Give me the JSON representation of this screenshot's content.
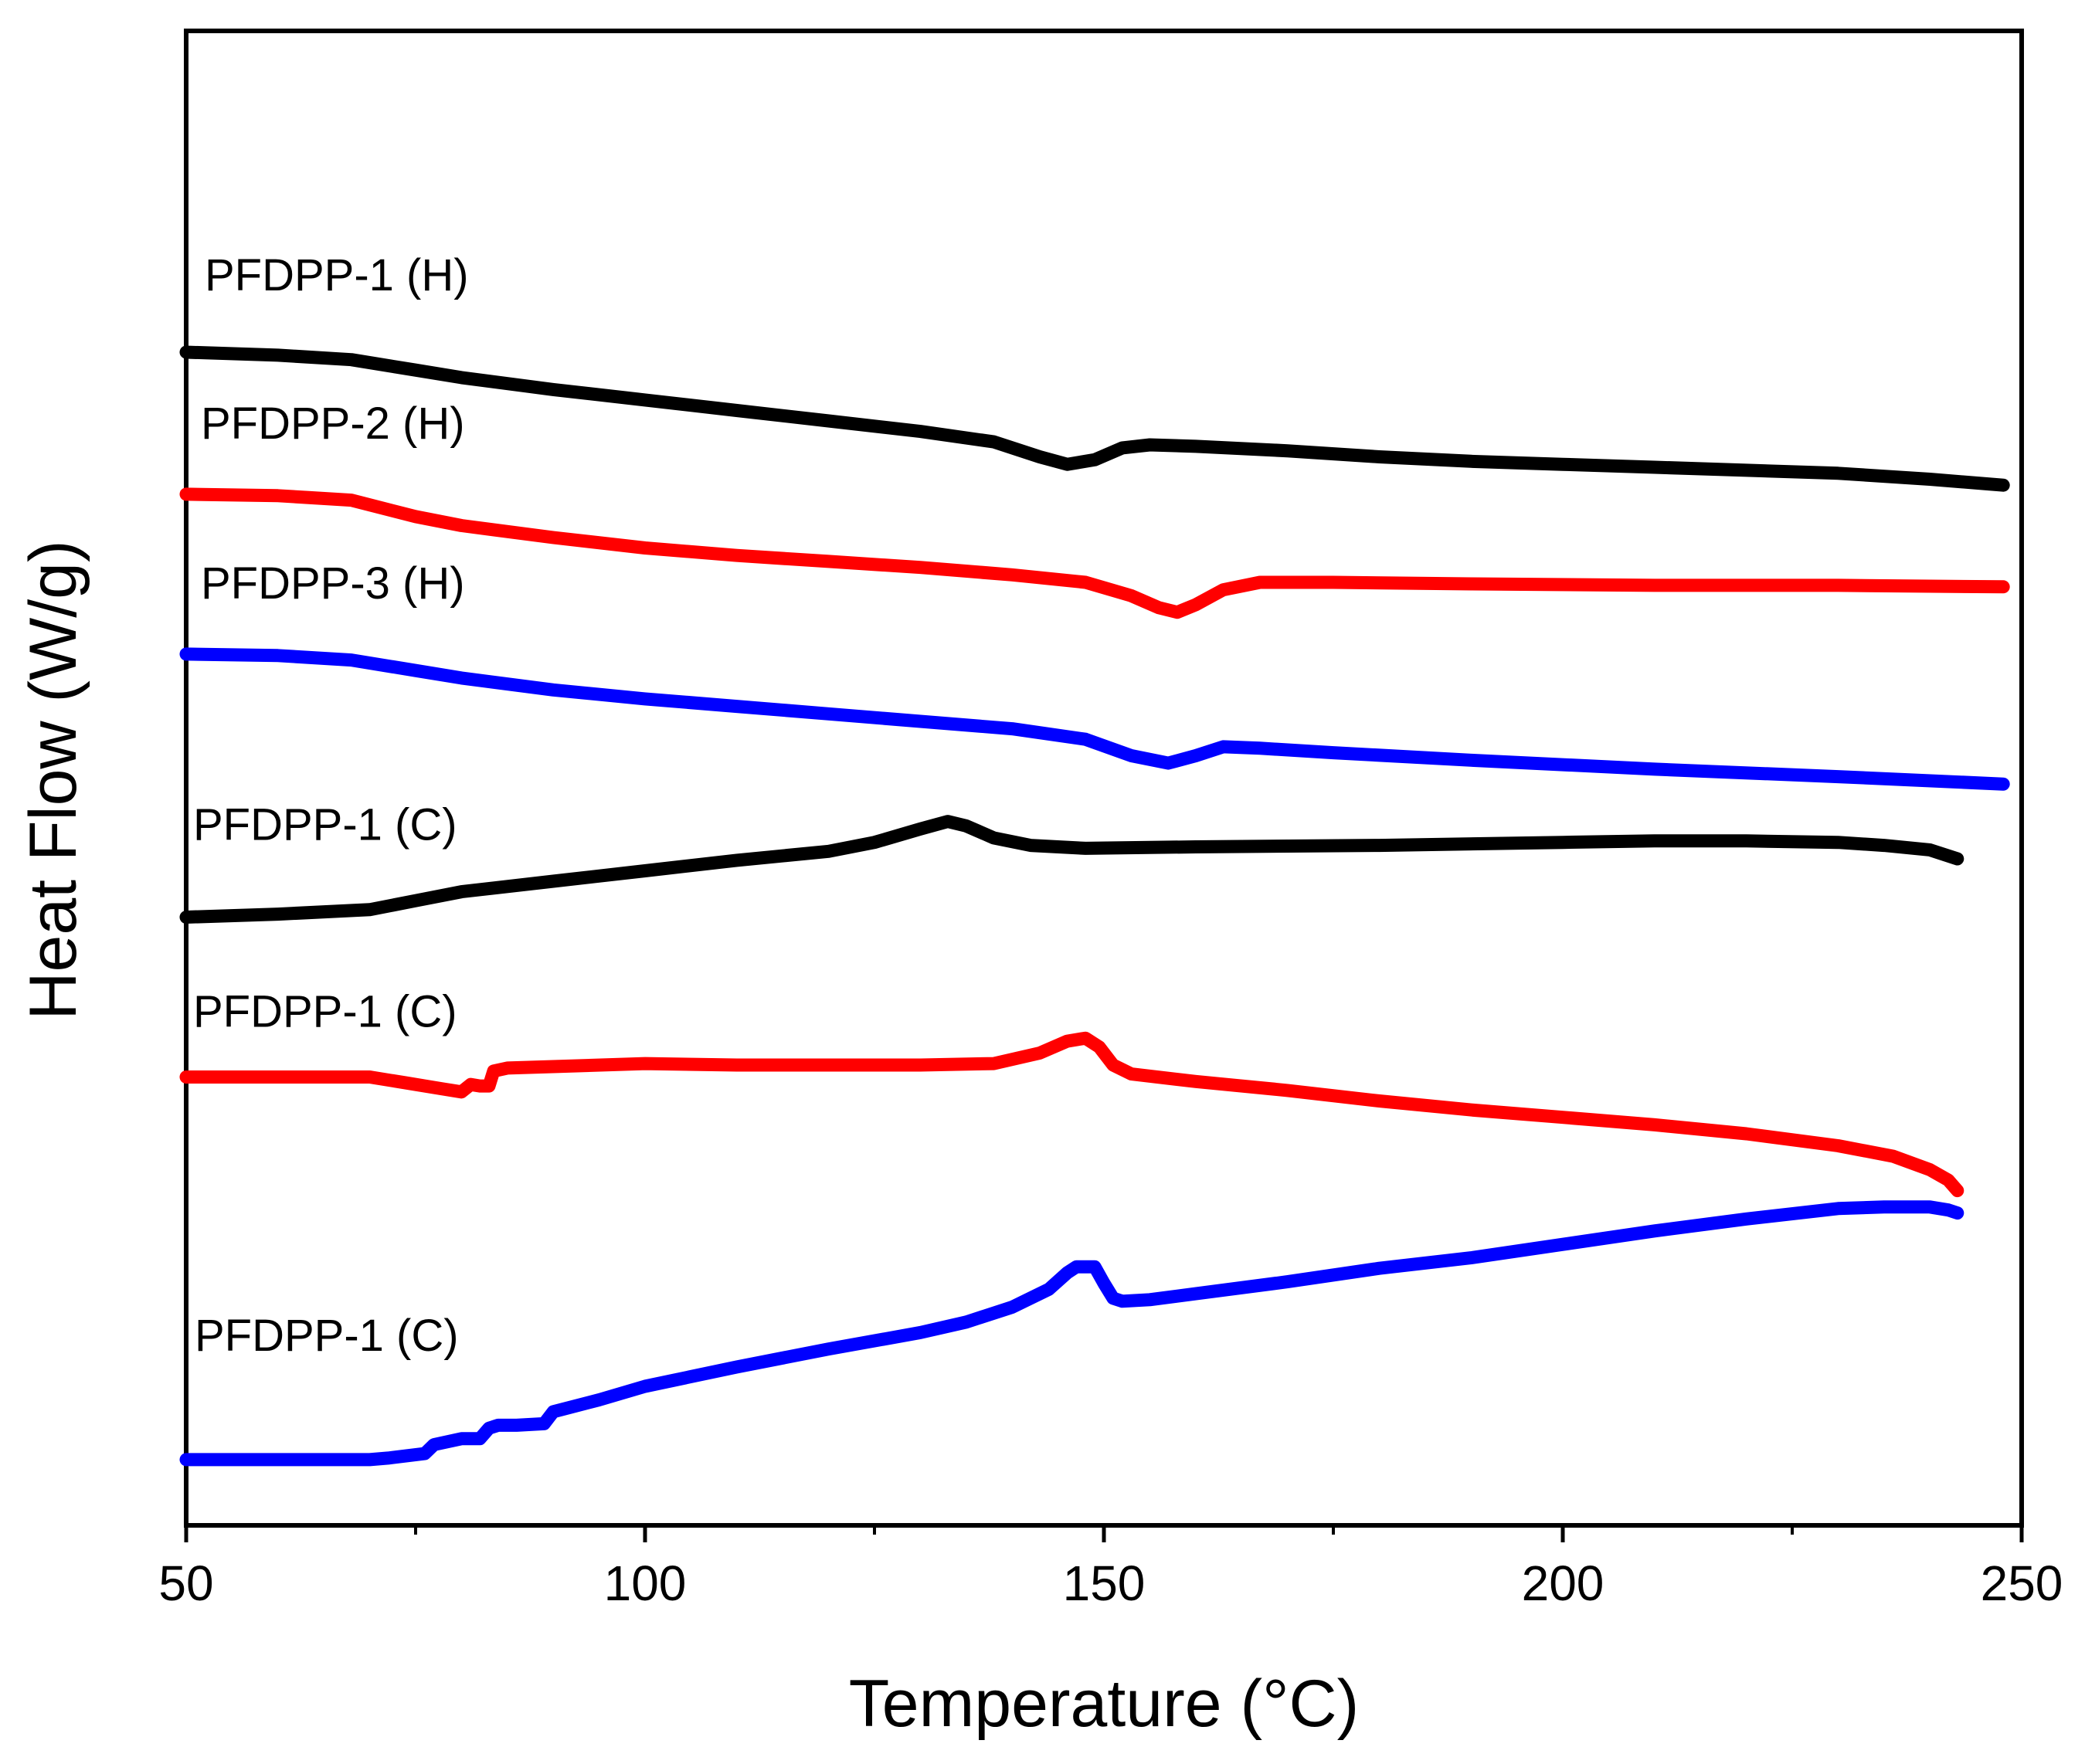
{
  "chart_data": {
    "type": "line",
    "title": "",
    "xlabel": "Temperature (°C)",
    "ylabel": "Heat Flow (W/g)",
    "xlim": [
      50,
      250
    ],
    "ylim": [
      0,
      100
    ],
    "y_ticks_shown": false,
    "x_major_ticks": [
      "50",
      "100",
      "150",
      "200",
      "250"
    ],
    "x_minor_ticks": [
      75,
      125,
      175,
      225
    ],
    "series": [
      {
        "name": "PFDPP-1 (H)",
        "label": "PFDPP-1 (H)",
        "color": "#000000",
        "x": [
          50,
          60,
          68,
          75,
          80,
          90,
          100,
          110,
          120,
          130,
          138,
          143,
          146,
          149,
          152,
          155,
          160,
          170,
          180,
          190,
          200,
          210,
          220,
          230,
          240,
          248
        ],
        "y": [
          78.5,
          78.3,
          78.0,
          77.3,
          76.8,
          76.0,
          75.3,
          74.6,
          73.9,
          73.2,
          72.5,
          71.5,
          71.0,
          71.3,
          72.1,
          72.3,
          72.2,
          71.9,
          71.5,
          71.2,
          71.0,
          70.8,
          70.6,
          70.4,
          70.0,
          69.6
        ]
      },
      {
        "name": "PFDPP-2 (H)",
        "label": "PFDPP-2 (H)",
        "color": "#ff0000",
        "x": [
          50,
          60,
          68,
          75,
          80,
          90,
          100,
          110,
          120,
          130,
          140,
          148,
          153,
          156,
          158,
          160,
          163,
          167,
          175,
          190,
          210,
          230,
          248
        ],
        "y": [
          69.0,
          68.9,
          68.6,
          67.5,
          66.9,
          66.1,
          65.4,
          64.9,
          64.5,
          64.1,
          63.6,
          63.1,
          62.2,
          61.4,
          61.1,
          61.6,
          62.6,
          63.1,
          63.1,
          63.0,
          62.9,
          62.9,
          62.8
        ]
      },
      {
        "name": "PFDPP-3 (H)",
        "label": "PFDPP-3 (H)",
        "color": "#0000ff",
        "x": [
          50,
          60,
          68,
          75,
          80,
          90,
          100,
          110,
          120,
          130,
          140,
          148,
          153,
          157,
          160,
          163,
          167,
          175,
          190,
          210,
          230,
          248
        ],
        "y": [
          58.3,
          58.2,
          57.9,
          57.2,
          56.7,
          55.9,
          55.3,
          54.8,
          54.3,
          53.8,
          53.3,
          52.6,
          51.5,
          51.0,
          51.5,
          52.1,
          52.0,
          51.7,
          51.2,
          50.6,
          50.1,
          49.6
        ]
      },
      {
        "name": "PFDPP-1 (C)",
        "label": "PFDPP-1 (C)",
        "color": "#000000",
        "x": [
          50,
          60,
          70,
          75,
          80,
          90,
          100,
          110,
          120,
          125,
          130,
          133,
          135,
          138,
          142,
          148,
          160,
          180,
          200,
          210,
          220,
          230,
          235,
          240,
          243
        ],
        "y": [
          40.7,
          40.9,
          41.2,
          41.8,
          42.4,
          43.1,
          43.8,
          44.5,
          45.1,
          45.7,
          46.6,
          47.1,
          46.8,
          46.0,
          45.5,
          45.3,
          45.4,
          45.5,
          45.7,
          45.8,
          45.8,
          45.7,
          45.5,
          45.2,
          44.6
        ]
      },
      {
        "name": "PFDPP-1 (C)",
        "label": "PFDPP-1 (C)",
        "color": "#ff0000",
        "x": [
          50,
          60,
          70,
          74,
          78,
          80,
          81,
          82,
          83,
          83.5,
          85,
          90,
          100,
          110,
          120,
          130,
          138,
          143,
          146,
          148,
          149.5,
          151,
          153,
          160,
          170,
          180,
          190,
          200,
          210,
          220,
          230,
          236,
          240,
          242,
          243
        ],
        "y": [
          30.0,
          30.0,
          30.0,
          29.6,
          29.2,
          29.0,
          29.5,
          29.4,
          29.4,
          30.4,
          30.6,
          30.7,
          30.9,
          30.8,
          30.8,
          30.8,
          30.9,
          31.6,
          32.4,
          32.6,
          32.0,
          30.8,
          30.2,
          29.7,
          29.1,
          28.4,
          27.8,
          27.3,
          26.8,
          26.2,
          25.4,
          24.7,
          23.8,
          23.1,
          22.4
        ]
      },
      {
        "name": "PFDPP-1 (C)",
        "label": "PFDPP-1 (C)",
        "color": "#0000ff",
        "x": [
          50,
          60,
          70,
          72,
          76,
          77,
          80,
          82,
          83,
          84,
          86,
          89,
          90,
          95,
          100,
          110,
          120,
          130,
          135,
          140,
          144,
          146,
          147,
          149,
          150,
          151,
          152,
          155,
          160,
          170,
          180,
          190,
          200,
          210,
          220,
          230,
          235,
          240,
          242,
          243
        ],
        "y": [
          4.4,
          4.4,
          4.4,
          4.5,
          4.8,
          5.4,
          5.8,
          5.8,
          6.5,
          6.7,
          6.7,
          6.8,
          7.6,
          8.4,
          9.3,
          10.6,
          11.8,
          12.9,
          13.6,
          14.6,
          15.8,
          16.9,
          17.3,
          17.3,
          16.2,
          15.2,
          15.0,
          15.1,
          15.5,
          16.3,
          17.2,
          17.9,
          18.8,
          19.7,
          20.5,
          21.2,
          21.3,
          21.3,
          21.1,
          20.9
        ]
      }
    ]
  }
}
